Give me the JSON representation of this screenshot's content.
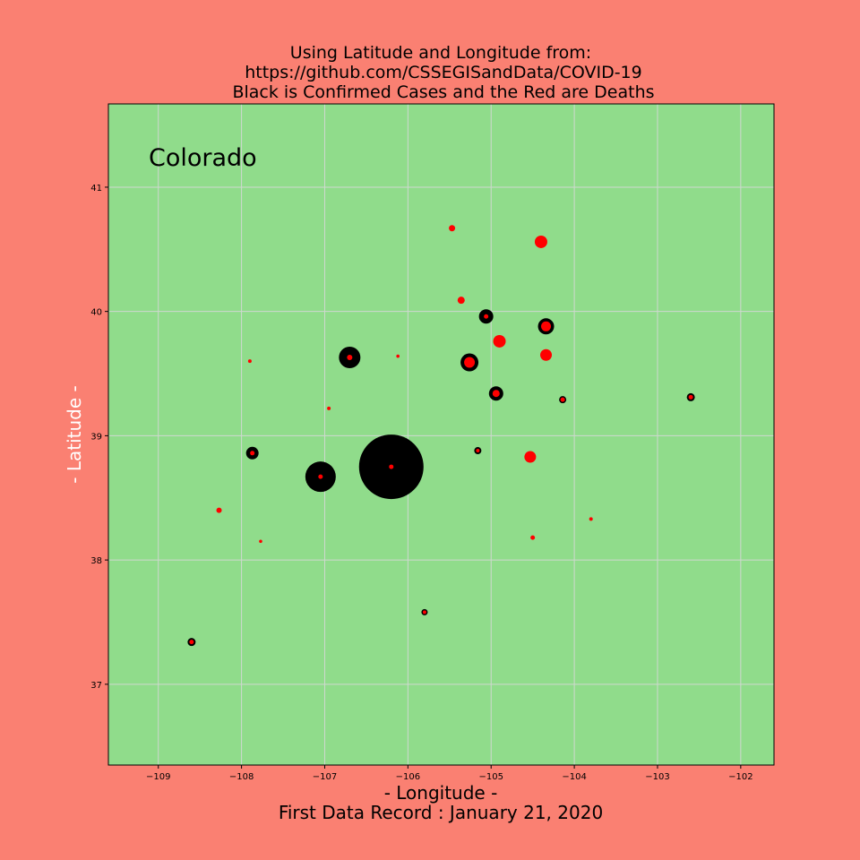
{
  "colors": {
    "figure_background": "#fa8072",
    "plot_background": "#90dc8b",
    "grid": "#cfd8d0",
    "confirmed": "#000000",
    "deaths": "#ff0000"
  },
  "chart_data": {
    "type": "scatter",
    "title_lines": [
      "Using Latitude and Longitude from:",
      "https://github.com/CSSEGISandData/COVID-19",
      "Black is Confirmed Cases and the Red are Deaths"
    ],
    "annotation": "Colorado",
    "xlabel": "- Longitude -",
    "xlabel2": "First Data Record : January 21, 2020",
    "ylabel": "- Latitude -",
    "xlim": [
      -109.6,
      -101.6
    ],
    "ylim": [
      36.35,
      41.67
    ],
    "xticks": [
      -109,
      -108,
      -107,
      -106,
      -105,
      -104,
      -103,
      -102
    ],
    "yticks": [
      37,
      38,
      39,
      40,
      41
    ],
    "grid": true,
    "series": [
      {
        "name": "Confirmed Cases",
        "marker_size": "relative",
        "points": [
          {
            "lon": -106.2,
            "lat": 38.75,
            "r": 36
          },
          {
            "lon": -107.05,
            "lat": 38.67,
            "r": 17
          },
          {
            "lon": -106.7,
            "lat": 39.63,
            "r": 12
          },
          {
            "lon": -105.26,
            "lat": 39.59,
            "r": 10
          },
          {
            "lon": -104.34,
            "lat": 39.88,
            "r": 9
          },
          {
            "lon": -105.06,
            "lat": 39.96,
            "r": 8
          },
          {
            "lon": -104.94,
            "lat": 39.34,
            "r": 8
          },
          {
            "lon": -107.87,
            "lat": 38.86,
            "r": 7
          },
          {
            "lon": -108.6,
            "lat": 37.34,
            "r": 4.5
          },
          {
            "lon": -102.6,
            "lat": 39.31,
            "r": 4.5
          },
          {
            "lon": -104.14,
            "lat": 39.29,
            "r": 4
          },
          {
            "lon": -105.16,
            "lat": 38.88,
            "r": 4
          },
          {
            "lon": -105.8,
            "lat": 37.58,
            "r": 3.5
          }
        ]
      },
      {
        "name": "Deaths",
        "marker_size": "relative",
        "points": [
          {
            "lon": -104.4,
            "lat": 40.56,
            "r": 7
          },
          {
            "lon": -104.9,
            "lat": 39.76,
            "r": 7
          },
          {
            "lon": -104.34,
            "lat": 39.65,
            "r": 6.5
          },
          {
            "lon": -104.53,
            "lat": 38.83,
            "r": 6.5
          },
          {
            "lon": -105.26,
            "lat": 39.59,
            "r": 6
          },
          {
            "lon": -104.34,
            "lat": 39.88,
            "r": 5.5
          },
          {
            "lon": -104.94,
            "lat": 39.34,
            "r": 4
          },
          {
            "lon": -105.36,
            "lat": 40.09,
            "r": 4
          },
          {
            "lon": -105.47,
            "lat": 40.67,
            "r": 3.5
          },
          {
            "lon": -106.7,
            "lat": 39.63,
            "r": 3
          },
          {
            "lon": -105.06,
            "lat": 39.96,
            "r": 2.5
          },
          {
            "lon": -108.27,
            "lat": 38.4,
            "r": 3
          },
          {
            "lon": -107.87,
            "lat": 38.86,
            "r": 2.5
          },
          {
            "lon": -108.6,
            "lat": 37.34,
            "r": 2.5
          },
          {
            "lon": -102.6,
            "lat": 39.31,
            "r": 2.5
          },
          {
            "lon": -104.14,
            "lat": 39.29,
            "r": 2.5
          },
          {
            "lon": -105.16,
            "lat": 38.88,
            "r": 2
          },
          {
            "lon": -105.8,
            "lat": 37.58,
            "r": 2
          },
          {
            "lon": -104.5,
            "lat": 38.18,
            "r": 2.5
          },
          {
            "lon": -106.2,
            "lat": 38.75,
            "r": 2.5
          },
          {
            "lon": -107.05,
            "lat": 38.67,
            "r": 2.5
          },
          {
            "lon": -103.8,
            "lat": 38.33,
            "r": 2
          },
          {
            "lon": -106.95,
            "lat": 39.22,
            "r": 2
          },
          {
            "lon": -107.9,
            "lat": 39.6,
            "r": 2
          },
          {
            "lon": -106.12,
            "lat": 39.64,
            "r": 1.8
          },
          {
            "lon": -107.77,
            "lat": 38.15,
            "r": 1.8
          }
        ]
      }
    ]
  }
}
